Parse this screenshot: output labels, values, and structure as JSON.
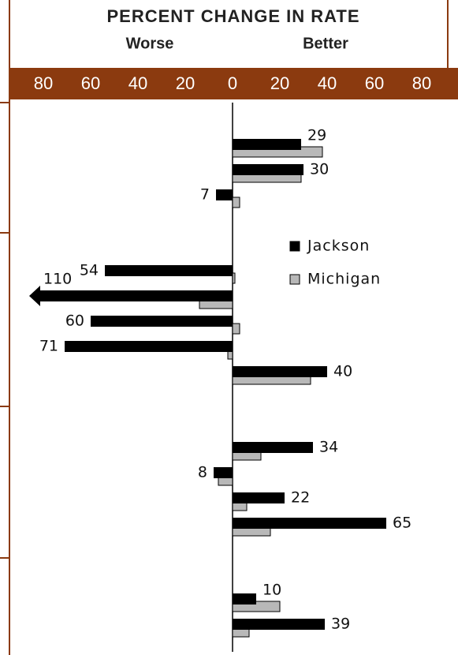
{
  "chart_data": {
    "type": "bar",
    "orientation": "horizontal",
    "title": "PERCENT CHANGE IN RATE",
    "left_label": "Worse",
    "right_label": "Better",
    "categories": [
      null,
      null,
      null,
      null,
      null,
      null,
      null,
      null,
      null,
      null,
      null,
      null,
      null,
      null,
      null,
      null,
      null,
      null,
      null,
      null
    ],
    "series": [
      {
        "name": "Jackson",
        "color": "#000000",
        "values": [
          29,
          30,
          -7,
          null,
          null,
          -54,
          -110,
          -60,
          -71,
          40,
          null,
          null,
          34,
          -8,
          22,
          65,
          null,
          null,
          10,
          39
        ],
        "value_labels": [
          "29",
          "30",
          "7",
          null,
          null,
          "54",
          "110",
          "60",
          "71",
          "40",
          null,
          null,
          "34",
          "8",
          "22",
          "65",
          null,
          null,
          "10",
          "39"
        ]
      },
      {
        "name": "Michigan",
        "color": "#b8b8b8",
        "values": [
          38,
          29,
          3,
          null,
          null,
          1,
          -14,
          3,
          -2,
          33,
          null,
          null,
          12,
          -6,
          6,
          16,
          null,
          null,
          20,
          7
        ]
      }
    ],
    "xlim": [
      -86,
      95
    ],
    "xticks": [
      {
        "value": -80,
        "label": "80"
      },
      {
        "value": -60,
        "label": "60"
      },
      {
        "value": -40,
        "label": "40"
      },
      {
        "value": -20,
        "label": "20"
      },
      0,
      20,
      40,
      60,
      80
    ],
    "grid": false
  }
}
